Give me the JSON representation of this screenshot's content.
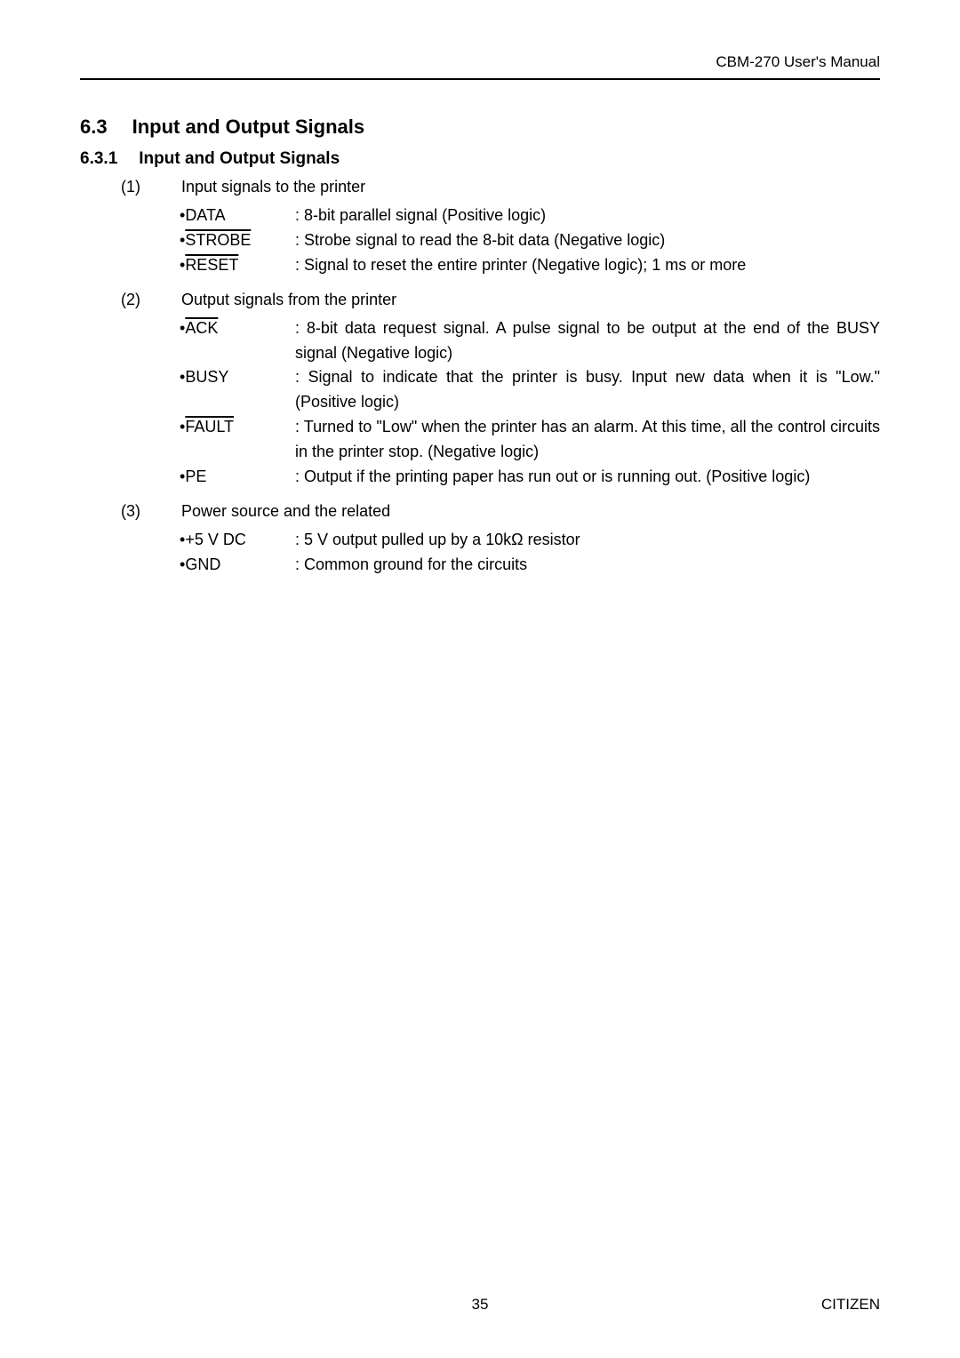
{
  "header": {
    "manual_title": "CBM-270 User's Manual"
  },
  "section": {
    "number": "6.3",
    "title": "Input and Output Signals"
  },
  "subsection": {
    "number": "6.3.1",
    "title": "Input and Output Signals"
  },
  "groups": [
    {
      "index": "(1)",
      "title": "Input signals to the printer",
      "signals": [
        {
          "bullet": "•",
          "name": "DATA",
          "overline": false,
          "desc": ": 8-bit parallel signal (Positive logic)"
        },
        {
          "bullet": "•",
          "name": "STROBE",
          "overline": true,
          "desc": ": Strobe signal to read the 8-bit data (Negative logic)"
        },
        {
          "bullet": "•",
          "name": "RESET",
          "overline": true,
          "desc": ": Signal to reset the entire printer (Negative logic); 1 ms or more"
        }
      ]
    },
    {
      "index": "(2)",
      "title": "Output signals from the printer",
      "signals": [
        {
          "bullet": "•",
          "name": "ACK",
          "overline": true,
          "desc": ": 8-bit data request signal.  A pulse signal to be output at the end of the BUSY signal (Negative logic)"
        },
        {
          "bullet": "•",
          "name": "BUSY",
          "overline": false,
          "desc": ": Signal to indicate that the printer is busy.  Input new data when it is \"Low.\" (Positive logic)"
        },
        {
          "bullet": "•",
          "name": "FAULT",
          "overline": true,
          "desc": ": Turned to \"Low\" when the printer has an alarm.  At this time, all the control circuits in the printer stop. (Negative logic)"
        },
        {
          "bullet": "•",
          "name": "PE",
          "overline": false,
          "desc": ": Output if the printing paper has run out or is running out. (Positive logic)"
        }
      ]
    },
    {
      "index": "(3)",
      "title": "Power source and the related",
      "signals": [
        {
          "bullet": "•",
          "name": "+5 V DC",
          "overline": false,
          "desc": ": 5 V output pulled up by a 10kΩ resistor"
        },
        {
          "bullet": "•",
          "name": "GND",
          "overline": false,
          "desc": ": Common ground for the circuits"
        }
      ]
    }
  ],
  "footer": {
    "page_number": "35",
    "brand": "CITIZEN"
  }
}
